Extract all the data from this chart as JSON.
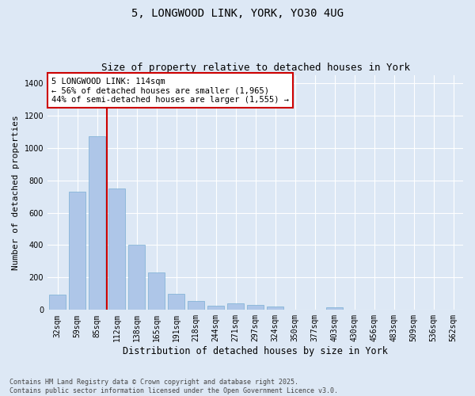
{
  "title1": "5, LONGWOOD LINK, YORK, YO30 4UG",
  "title2": "Size of property relative to detached houses in York",
  "xlabel": "Distribution of detached houses by size in York",
  "ylabel": "Number of detached properties",
  "categories": [
    "32sqm",
    "59sqm",
    "85sqm",
    "112sqm",
    "138sqm",
    "165sqm",
    "191sqm",
    "218sqm",
    "244sqm",
    "271sqm",
    "297sqm",
    "324sqm",
    "350sqm",
    "377sqm",
    "403sqm",
    "430sqm",
    "456sqm",
    "483sqm",
    "509sqm",
    "536sqm",
    "562sqm"
  ],
  "values": [
    95,
    730,
    1070,
    750,
    400,
    230,
    100,
    55,
    25,
    40,
    30,
    20,
    0,
    0,
    15,
    0,
    0,
    0,
    0,
    0,
    0
  ],
  "bar_color": "#aec6e8",
  "bar_edgecolor": "#7aafd4",
  "vline_x": 2.5,
  "vline_color": "#cc0000",
  "annotation_text": "5 LONGWOOD LINK: 114sqm\n← 56% of detached houses are smaller (1,965)\n44% of semi-detached houses are larger (1,555) →",
  "annotation_box_edgecolor": "#cc0000",
  "annotation_box_facecolor": "#ffffff",
  "ylim": [
    0,
    1450
  ],
  "yticks": [
    0,
    200,
    400,
    600,
    800,
    1000,
    1200,
    1400
  ],
  "background_color": "#dde8f5",
  "footer_text": "Contains HM Land Registry data © Crown copyright and database right 2025.\nContains public sector information licensed under the Open Government Licence v3.0.",
  "title1_fontsize": 10,
  "title2_fontsize": 9,
  "xlabel_fontsize": 8.5,
  "ylabel_fontsize": 8,
  "tick_fontsize": 7,
  "annotation_fontsize": 7.5,
  "footer_fontsize": 6
}
